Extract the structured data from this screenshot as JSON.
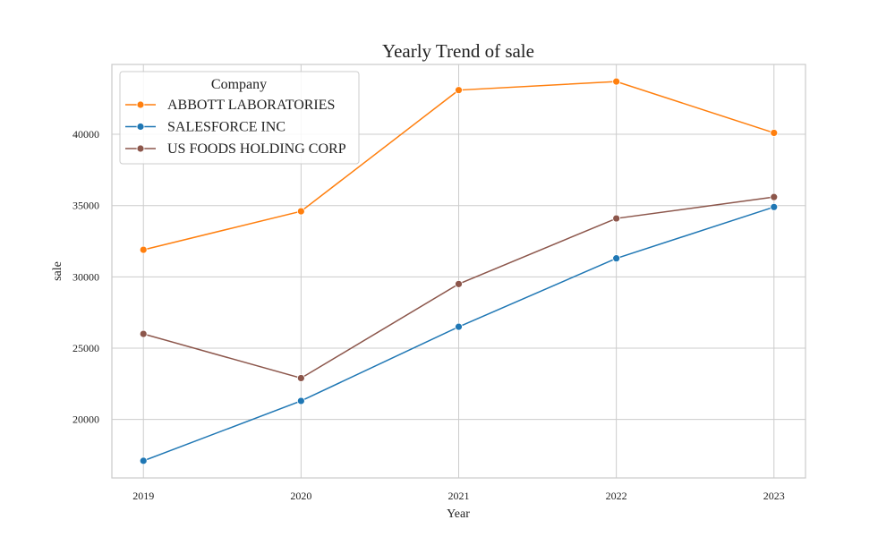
{
  "chart_data": {
    "type": "line",
    "title": "Yearly Trend of sale",
    "xlabel": "Year",
    "ylabel": "sale",
    "x": [
      2019,
      2020,
      2021,
      2022,
      2023
    ],
    "x_tick_labels": [
      "2019",
      "2020",
      "2021",
      "2022",
      "2023"
    ],
    "y_ticks": [
      20000,
      25000,
      30000,
      35000,
      40000
    ],
    "y_tick_labels": [
      "20000",
      "25000",
      "30000",
      "35000",
      "40000"
    ],
    "xlim": [
      2018.8,
      2023.2
    ],
    "ylim": [
      15900,
      44900
    ],
    "grid": true,
    "legend": {
      "title": "Company",
      "placement": "top-left"
    },
    "series": [
      {
        "name": "ABBOTT LABORATORIES",
        "color": "#ff7f0e",
        "values": [
          31900,
          34600,
          43100,
          43700,
          40100
        ]
      },
      {
        "name": "SALESFORCE INC",
        "color": "#1f77b4",
        "values": [
          17100,
          21300,
          26500,
          31300,
          34900
        ]
      },
      {
        "name": "US FOODS HOLDING CORP",
        "color": "#8c564b",
        "values": [
          26000,
          22900,
          29500,
          34100,
          35600
        ]
      }
    ]
  }
}
